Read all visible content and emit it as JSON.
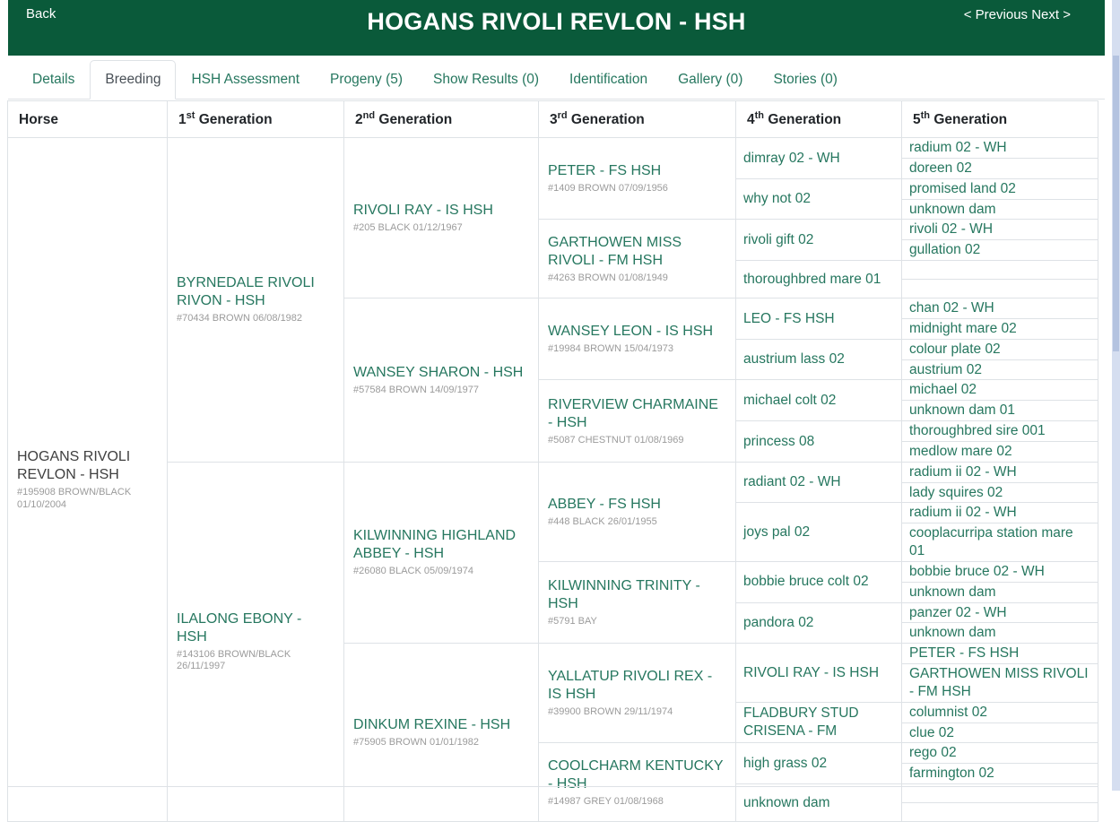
{
  "colors": {
    "header_green": "#0a5a3a",
    "link_teal": "#26775f",
    "border": "#dee2e6",
    "muted": "#9b9b9b",
    "scrollbar_track": "#d5def0",
    "scrollbar_thumb": "#b4c3e0"
  },
  "header": {
    "back": "Back",
    "title": "HOGANS RIVOLI REVLON - HSH",
    "previous": "< Previous",
    "next": "Next >"
  },
  "tabs": [
    {
      "label": "Details",
      "active": false
    },
    {
      "label": "Breeding",
      "active": true
    },
    {
      "label": "HSH Assessment",
      "active": false
    },
    {
      "label": "Progeny (5)",
      "active": false
    },
    {
      "label": "Show Results (0)",
      "active": false
    },
    {
      "label": "Identification",
      "active": false
    },
    {
      "label": "Gallery (0)",
      "active": false
    },
    {
      "label": "Stories (0)",
      "active": false
    }
  ],
  "pedigree": {
    "columns": [
      {
        "pre": "Horse",
        "sup": "",
        "post": ""
      },
      {
        "pre": "1",
        "sup": "st",
        "post": " Generation"
      },
      {
        "pre": "2",
        "sup": "nd",
        "post": " Generation"
      },
      {
        "pre": "3",
        "sup": "rd",
        "post": " Generation"
      },
      {
        "pre": "4",
        "sup": "th",
        "post": " Generation"
      },
      {
        "pre": "5",
        "sup": "th",
        "post": " Generation"
      }
    ],
    "horse": {
      "name": "HOGANS RIVOLI REVLON - HSH",
      "details": "#195908 BROWN/BLACK 01/10/2004"
    },
    "gen1": [
      {
        "name": "BYRNEDALE RIVOLI RIVON - HSH",
        "details": "#70434 BROWN 06/08/1982"
      },
      {
        "name": "ILALONG EBONY - HSH",
        "details": "#143106 BROWN/BLACK 26/11/1997"
      }
    ],
    "gen2": [
      {
        "name": "RIVOLI RAY - IS HSH",
        "details": "#205 BLACK 01/12/1967"
      },
      {
        "name": "WANSEY SHARON - HSH",
        "details": "#57584 BROWN 14/09/1977"
      },
      {
        "name": "KILWINNING HIGHLAND ABBEY - HSH",
        "details": "#26080 BLACK 05/09/1974"
      },
      {
        "name": "DINKUM REXINE - HSH",
        "details": "#75905 BROWN 01/01/1982"
      }
    ],
    "gen3": [
      {
        "name": "PETER - FS HSH",
        "details": "#1409 BROWN 07/09/1956"
      },
      {
        "name": "GARTHOWEN MISS RIVOLI - FM HSH",
        "details": "#4263 BROWN 01/08/1949"
      },
      {
        "name": "WANSEY LEON - IS HSH",
        "details": "#19984 BROWN 15/04/1973"
      },
      {
        "name": "RIVERVIEW CHARMAINE - HSH",
        "details": "#5087 CHESTNUT 01/08/1969"
      },
      {
        "name": "ABBEY - FS HSH",
        "details": "#448 BLACK 26/01/1955"
      },
      {
        "name": "KILWINNING TRINITY - HSH",
        "details": "#5791 BAY"
      },
      {
        "name": "YALLATUP RIVOLI REX - IS HSH",
        "details": "#39900 BROWN 29/11/1974"
      },
      {
        "name": "COOLCHARM KENTUCKY - HSH",
        "details": "#14987 GREY 01/08/1968"
      }
    ],
    "gen4": [
      {
        "name": "dimray 02 - WH"
      },
      {
        "name": "why not 02"
      },
      {
        "name": "rivoli gift 02"
      },
      {
        "name": "thoroughbred mare 01"
      },
      {
        "name": "LEO - FS HSH"
      },
      {
        "name": "austrium lass 02"
      },
      {
        "name": "michael colt 02"
      },
      {
        "name": "princess 08"
      },
      {
        "name": "radiant 02 - WH"
      },
      {
        "name": "joys pal 02"
      },
      {
        "name": "bobbie bruce colt 02"
      },
      {
        "name": "pandora 02"
      },
      {
        "name": "RIVOLI RAY - IS HSH"
      },
      {
        "name": "FLADBURY STUD CRISENA - FM"
      },
      {
        "name": "high grass 02"
      },
      {
        "name": "unknown dam"
      }
    ],
    "gen5": [
      {
        "name": "radium 02 - WH"
      },
      {
        "name": "doreen 02"
      },
      {
        "name": "promised land 02"
      },
      {
        "name": "unknown dam"
      },
      {
        "name": "rivoli 02 - WH"
      },
      {
        "name": "gullation 02"
      },
      {
        "name": ""
      },
      {
        "name": ""
      },
      {
        "name": "chan 02 - WH"
      },
      {
        "name": "midnight mare 02"
      },
      {
        "name": "colour plate 02"
      },
      {
        "name": "austrium 02"
      },
      {
        "name": "michael 02"
      },
      {
        "name": "unknown dam 01"
      },
      {
        "name": "thoroughbred sire 001"
      },
      {
        "name": "medlow mare 02"
      },
      {
        "name": "radium ii 02 - WH"
      },
      {
        "name": "lady squires 02"
      },
      {
        "name": "radium ii 02 - WH"
      },
      {
        "name": "cooplacurripa station mare 01"
      },
      {
        "name": "bobbie bruce 02 - WH"
      },
      {
        "name": "unknown dam"
      },
      {
        "name": "panzer 02 - WH"
      },
      {
        "name": "unknown dam"
      },
      {
        "name": "PETER - FS HSH"
      },
      {
        "name": "GARTHOWEN MISS RIVOLI - FM HSH"
      },
      {
        "name": "columnist 02"
      },
      {
        "name": "clue 02"
      },
      {
        "name": "rego 02"
      },
      {
        "name": "farmington 02"
      },
      {
        "name": ""
      },
      {
        "name": ""
      }
    ]
  }
}
